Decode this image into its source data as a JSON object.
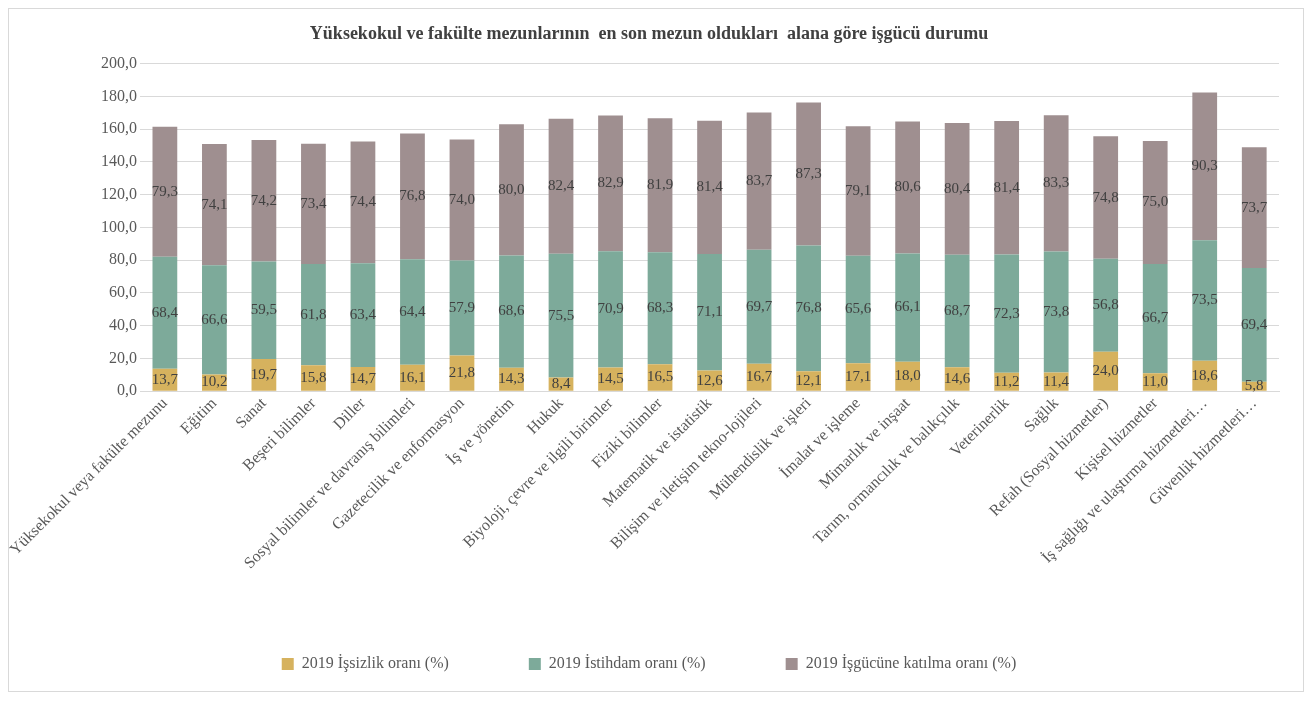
{
  "chart_data": {
    "type": "bar",
    "title": "Yüksekokul ve fakülte mezunlarının  en son mezun oldukları  alana göre işgücü durumu",
    "categories": [
      "Yüksekokul veya fakülte mezunu",
      "Eğitim",
      "Sanat",
      "Beşeri bilimler",
      "Diller",
      "Sosyal bilimler ve davranış bilimleri",
      "Gazetecilik ve enformasyon",
      "İş ve yönetim",
      "Hukuk",
      "Biyoloji, çevre ve ilgili birimler",
      "Fiziki bilimler",
      "Matematik ve istatistik",
      "Bilişim ve iletişim tekno-lojileri",
      "Mühendislik ve işleri",
      "İmalat ve işleme",
      "Mimarlık ve inşaat",
      "Tarım, ormancılık ve balıkçılık",
      "Veterinerlik",
      "Sağlık",
      "Refah (Sosyal hizmetler)",
      "Kişisel hizmetler",
      "İş sağlığı ve ulaştırma hizmetleri…",
      "Güvenlik hizmetleri…"
    ],
    "series": [
      {
        "name": "2019 İşsizlik oranı (%)",
        "color": "#d6b25e",
        "values": [
          13.7,
          10.2,
          19.7,
          15.8,
          14.7,
          16.1,
          21.8,
          14.3,
          8.4,
          14.5,
          16.5,
          12.6,
          16.7,
          12.1,
          17.1,
          18.0,
          14.6,
          11.2,
          11.4,
          24.0,
          11.0,
          18.6,
          5.8
        ],
        "value_labels": [
          "13,7",
          "10,2",
          "19,7",
          "15,8",
          "14,7",
          "16,1",
          "21,8",
          "14,3",
          "8,4",
          "14,5",
          "16,5",
          "12,6",
          "16,7",
          "12,1",
          "17,1",
          "18,0",
          "14,6",
          "11,2",
          "11,4",
          "24,0",
          "11,0",
          "18,6",
          "5,8"
        ]
      },
      {
        "name": "2019 İstihdam oranı (%)",
        "color": "#7daa9a",
        "values": [
          68.4,
          66.6,
          59.5,
          61.8,
          63.4,
          64.4,
          57.9,
          68.6,
          75.5,
          70.9,
          68.3,
          71.1,
          69.7,
          76.8,
          65.6,
          66.1,
          68.7,
          72.3,
          73.8,
          56.8,
          66.7,
          73.5,
          69.4
        ],
        "value_labels": [
          "68,4",
          "66,6",
          "59,5",
          "61,8",
          "63,4",
          "64,4",
          "57,9",
          "68,6",
          "75,5",
          "70,9",
          "68,3",
          "71,1",
          "69,7",
          "76,8",
          "65,6",
          "66,1",
          "68,7",
          "72,3",
          "73,8",
          "56,8",
          "66,7",
          "73,5",
          "69,4"
        ]
      },
      {
        "name": "2019 İşgücüne katılma oranı (%)",
        "color": "#9f8f90",
        "values": [
          79.3,
          74.1,
          74.2,
          73.4,
          74.4,
          76.8,
          74.0,
          80.0,
          82.4,
          82.9,
          81.9,
          81.4,
          83.7,
          87.3,
          79.1,
          80.6,
          80.4,
          81.4,
          83.3,
          74.8,
          75.0,
          90.3,
          73.7
        ],
        "value_labels": [
          "79,3",
          "74,1",
          "74,2",
          "73,4",
          "74,4",
          "76,8",
          "74,0",
          "80,0",
          "82,4",
          "82,9",
          "81,9",
          "81,4",
          "83,7",
          "87,3",
          "79,1",
          "80,6",
          "80,4",
          "81,4",
          "83,3",
          "74,8",
          "75,0",
          "90,3",
          "73,7"
        ]
      }
    ],
    "stacked": true,
    "ylim": [
      0,
      200
    ],
    "yticks": [
      {
        "value": 0,
        "label": "0,0"
      },
      {
        "value": 20,
        "label": "20,0"
      },
      {
        "value": 40,
        "label": "40,0"
      },
      {
        "value": 60,
        "label": "60,0"
      },
      {
        "value": 80,
        "label": "80,0"
      },
      {
        "value": 100,
        "label": "100,0"
      },
      {
        "value": 120,
        "label": "120,0"
      },
      {
        "value": 140,
        "label": "140,0"
      },
      {
        "value": 160,
        "label": "160,0"
      },
      {
        "value": 180,
        "label": "180,0"
      },
      {
        "value": 200,
        "label": "200,0"
      }
    ],
    "grid": "y",
    "legend": "bottom"
  }
}
